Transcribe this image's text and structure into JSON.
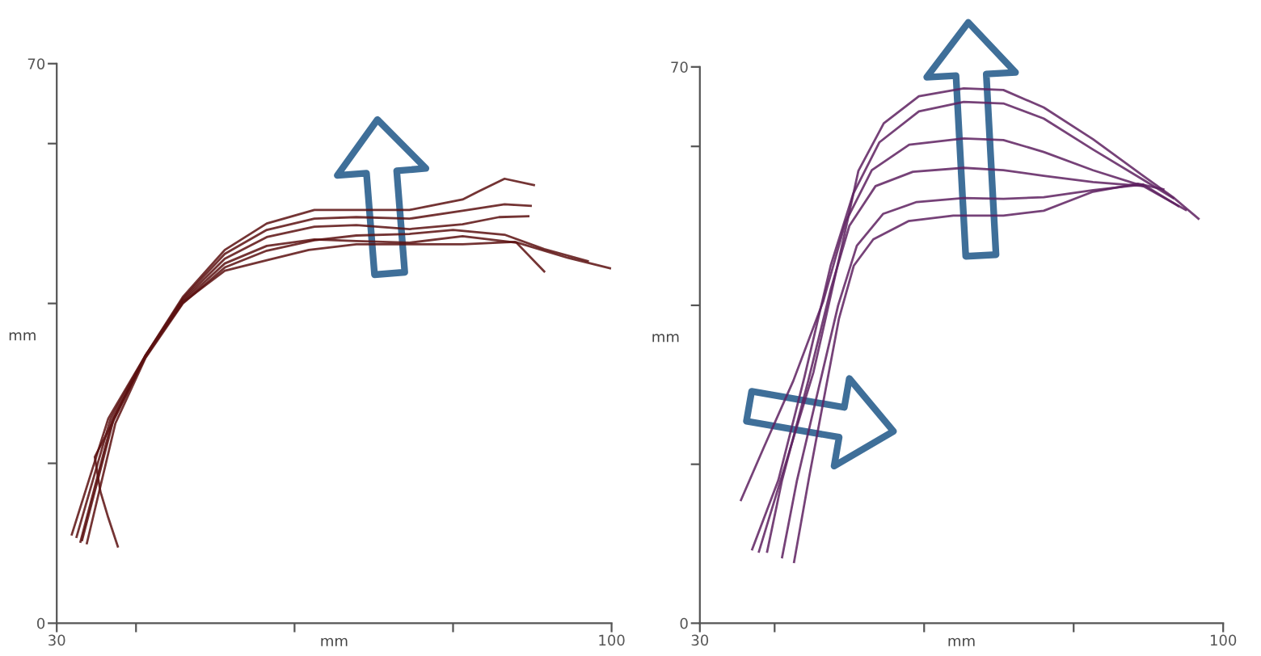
{
  "chart_data": [
    {
      "type": "line",
      "xlabel": "mm",
      "ylabel": "mm",
      "xlim": [
        30,
        100
      ],
      "ylim": [
        0,
        70
      ],
      "xticks": [
        30,
        {
          "value": 40,
          "label": null
        },
        {
          "value": 60,
          "label": null
        },
        {
          "value": 80,
          "label": null
        },
        100
      ],
      "yticks": [
        0,
        {
          "value": 20,
          "label": null
        },
        {
          "value": 40,
          "label": null
        },
        {
          "value": 60,
          "label": null
        },
        70
      ],
      "series": [
        {
          "color": "#5c1010",
          "x": [
            31.9,
            36.5,
            41.2,
            45.9,
            51.2,
            56.5,
            62.5,
            67.8,
            74.5,
            81.2,
            83.2,
            86.5,
            90.2
          ],
          "values": [
            11.1,
            25.6,
            33.5,
            40.8,
            46.7,
            50.0,
            51.7,
            51.7,
            51.7,
            53.0,
            54.0,
            55.6,
            54.8
          ]
        },
        {
          "color": "#5c1010",
          "x": [
            32.5,
            36.8,
            41.2,
            45.9,
            51.2,
            56.5,
            62.5,
            67.8,
            74.5,
            81.2,
            86.5,
            89.8
          ],
          "values": [
            10.8,
            25.6,
            33.5,
            40.6,
            46.2,
            49.2,
            50.6,
            50.8,
            50.6,
            51.6,
            52.4,
            52.2
          ]
        },
        {
          "color": "#5c1010",
          "x": [
            33.0,
            37.0,
            41.2,
            45.9,
            51.2,
            56.5,
            62.5,
            67.8,
            74.5,
            81.2,
            85.8,
            89.5
          ],
          "values": [
            10.2,
            25.4,
            33.3,
            40.4,
            45.6,
            48.3,
            49.6,
            49.8,
            49.3,
            49.9,
            50.8,
            50.9
          ]
        },
        {
          "color": "#5c1010",
          "x": [
            37.7,
            36.5,
            35.5,
            34.8,
            37.5,
            41.2,
            45.9,
            51.2,
            56.5,
            62.5,
            67.8,
            74.5,
            81.2,
            88.0,
            91.5
          ],
          "values": [
            9.6,
            13.2,
            16.5,
            20.8,
            26.0,
            33.4,
            40.2,
            45.0,
            47.2,
            48.0,
            47.8,
            47.6,
            48.4,
            47.6,
            44.0
          ]
        },
        {
          "color": "#5c1010",
          "x": [
            33.8,
            37.4,
            41.2,
            45.9,
            51.2,
            56.5,
            62.5,
            67.8,
            74.5,
            80.0,
            86.5,
            91.5,
            97.0
          ],
          "values": [
            10.0,
            25.0,
            33.2,
            40.0,
            44.5,
            46.6,
            47.9,
            48.5,
            48.7,
            49.2,
            48.6,
            46.8,
            45.3
          ]
        },
        {
          "color": "#5c1010",
          "x": [
            33.2,
            37.2,
            41.2,
            45.9,
            51.2,
            56.5,
            61.8,
            67.8,
            74.5,
            81.2,
            87.8,
            94.5,
            99.8
          ],
          "values": [
            10.4,
            25.6,
            33.5,
            40.1,
            44.1,
            45.4,
            46.7,
            47.4,
            47.4,
            47.4,
            47.7,
            45.7,
            44.4
          ]
        }
      ]
    },
    {
      "type": "line",
      "xlabel": "mm",
      "ylabel": "mm",
      "xlim": [
        30,
        100
      ],
      "ylim": [
        0,
        70
      ],
      "xticks": [
        30,
        {
          "value": 40,
          "label": null
        },
        {
          "value": 60,
          "label": null
        },
        {
          "value": 80,
          "label": null
        },
        100
      ],
      "yticks": [
        0,
        {
          "value": 20,
          "label": null
        },
        {
          "value": 40,
          "label": null
        },
        {
          "value": 60,
          "label": null
        },
        70
      ],
      "series": [
        {
          "color": "#5e2160",
          "x": [
            37.9,
            45.2,
            49.2,
            51.2,
            54.6,
            59.3,
            65.3,
            70.6,
            76.0,
            82.6,
            89.3,
            93.3,
            96.7
          ],
          "values": [
            9.0,
            31.6,
            48.3,
            56.9,
            62.9,
            66.3,
            67.3,
            67.1,
            64.9,
            60.9,
            56.3,
            53.6,
            50.9
          ]
        },
        {
          "color": "#5e2160",
          "x": [
            37.0,
            40.5,
            44.0,
            47.5,
            50.5,
            54.0,
            59.3,
            65.3,
            70.6,
            76.0,
            82.6,
            89.3,
            93.3
          ],
          "values": [
            9.3,
            18.0,
            31.0,
            45.0,
            54.0,
            60.5,
            64.4,
            65.6,
            65.4,
            63.5,
            59.6,
            55.8,
            53.5
          ]
        },
        {
          "color": "#5e2160",
          "x": [
            35.5,
            38.5,
            42.5,
            46.5,
            49.5,
            53.0,
            58.0,
            65.3,
            70.6,
            76.0,
            82.6,
            89.3,
            95.0
          ],
          "values": [
            15.5,
            22.0,
            30.5,
            40.5,
            50.5,
            57.0,
            60.2,
            61.0,
            60.8,
            59.3,
            57.0,
            55.0,
            52.0
          ]
        },
        {
          "color": "#5e2160",
          "x": [
            39.0,
            41.0,
            44.5,
            47.5,
            50.0,
            53.5,
            58.5,
            65.3,
            70.6,
            76.0,
            82.6,
            89.3
          ],
          "values": [
            9.0,
            18.0,
            30.5,
            42.0,
            50.0,
            55.0,
            56.8,
            57.3,
            57.0,
            56.3,
            55.5,
            55.0
          ]
        },
        {
          "color": "#5e2160",
          "x": [
            41.0,
            43.0,
            46.0,
            48.5,
            51.0,
            54.5,
            59.0,
            65.3,
            70.6,
            76.0,
            82.6,
            89.3,
            94.0
          ],
          "values": [
            8.3,
            18.0,
            30.0,
            40.0,
            47.5,
            51.5,
            53.0,
            53.5,
            53.4,
            53.6,
            54.5,
            55.2,
            52.5
          ]
        },
        {
          "color": "#5e2160",
          "x": [
            42.6,
            44.6,
            46.6,
            48.6,
            50.6,
            53.2,
            57.9,
            63.9,
            70.6,
            76.0,
            82.6,
            88.6,
            92.0
          ],
          "values": [
            7.7,
            18.3,
            28.3,
            38.3,
            45.0,
            48.3,
            50.6,
            51.3,
            51.3,
            51.9,
            54.3,
            55.3,
            54.6
          ]
        }
      ]
    }
  ]
}
